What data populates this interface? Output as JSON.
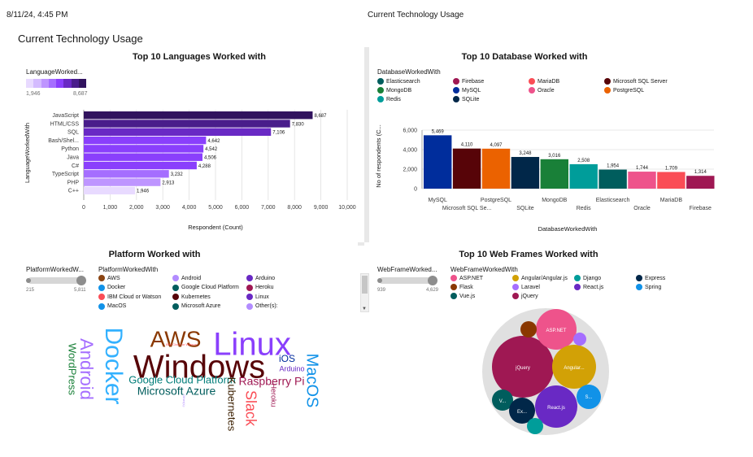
{
  "header": {
    "timestamp": "8/11/24, 4:45 PM",
    "center_title": "Current Technology Usage",
    "dashboard_title": "Current Technology Usage"
  },
  "languages_panel": {
    "title": "Top 10 Languages Worked with",
    "legend_title": "LanguageWorked...",
    "legend_min": "1,946",
    "legend_max": "8,687",
    "y_axis_label": "LanguageWorkedWith",
    "x_axis_label": "Respondent (Count)"
  },
  "database_panel": {
    "title": "Top 10 Database Worked with",
    "legend_title": "DatabaseWorkedWith",
    "y_axis_label": "No of respondents (C...",
    "x_axis_label": "DatabaseWorkedWith"
  },
  "platform_panel": {
    "title": "Platform Worked with",
    "slider_title": "PlatformWorkedW...",
    "slider_min": "215",
    "slider_max": "5,811",
    "legend_title": "PlatformWorkedWith",
    "legend": [
      {
        "label": "AWS",
        "color": "#8b4513"
      },
      {
        "label": "Android",
        "color": "#b28cff"
      },
      {
        "label": "Arduino",
        "color": "#6929c4"
      },
      {
        "label": "Docker",
        "color": "#1192e8"
      },
      {
        "label": "Google Cloud Platform",
        "color": "#005d5d"
      },
      {
        "label": "Heroku",
        "color": "#9f1853"
      },
      {
        "label": "IBM Cloud or Watson",
        "color": "#fa4d56"
      },
      {
        "label": "Kubernetes",
        "color": "#570408"
      },
      {
        "label": "Linux",
        "color": "#6929c4"
      },
      {
        "label": "MacOS",
        "color": "#1192e8"
      },
      {
        "label": "Microsoft Azure",
        "color": "#005d5d"
      },
      {
        "label": "Other(s):",
        "color": "#b28cff"
      }
    ],
    "words": [
      {
        "text": "Windows",
        "color": "#570408"
      },
      {
        "text": "Linux",
        "color": "#8a3ffc"
      },
      {
        "text": "Docker",
        "color": "#33b1ff"
      },
      {
        "text": "AWS",
        "color": "#8a3800"
      },
      {
        "text": "Android",
        "color": "#a56eff"
      },
      {
        "text": "MacOS",
        "color": "#1192e8"
      },
      {
        "text": "Google Cloud Platform",
        "color": "#007d79"
      },
      {
        "text": "Microsoft Azure",
        "color": "#005d5d"
      },
      {
        "text": "Raspberry Pi",
        "color": "#9f1853"
      },
      {
        "text": "Kubernetes",
        "color": "#3b1f00"
      },
      {
        "text": "Slack",
        "color": "#fa4d56"
      },
      {
        "text": "WordPress",
        "color": "#198038"
      },
      {
        "text": "iOS",
        "color": "#002d9c"
      },
      {
        "text": "Arduino",
        "color": "#6929c4"
      },
      {
        "text": "Heroku",
        "color": "#9f1853"
      },
      {
        "text": "IBM Cloud or Watson",
        "color": "#fa4d56"
      },
      {
        "text": "Other(s):",
        "color": "#b28cff"
      }
    ]
  },
  "webframe_panel": {
    "title": "Top 10 Web Frames Worked with",
    "slider_title": "WebFrameWorked...",
    "slider_min": "939",
    "slider_max": "4,629",
    "legend_title": "WebFrameWorkedWith",
    "legend": [
      {
        "label": "ASP.NET",
        "color": "#ee538b"
      },
      {
        "label": "Angular/Angular.js",
        "color": "#d2a106"
      },
      {
        "label": "Django",
        "color": "#009d9a"
      },
      {
        "label": "Express",
        "color": "#012749"
      },
      {
        "label": "Flask",
        "color": "#8a3800"
      },
      {
        "label": "Laravel",
        "color": "#a56eff"
      },
      {
        "label": "React.js",
        "color": "#6929c4"
      },
      {
        "label": "Spring",
        "color": "#1192e8"
      },
      {
        "label": "Vue.js",
        "color": "#005d5d"
      },
      {
        "label": "jQuery",
        "color": "#9f1853"
      }
    ],
    "bubble_labels": {
      "aspnet": "ASP.NET",
      "jquery": "jQuery",
      "angular": "Angular...",
      "react": "React.js",
      "spring": "S...",
      "vue": "V...",
      "express": "Ex..."
    }
  },
  "chart_data": [
    {
      "type": "bar",
      "orientation": "horizontal",
      "title": "Top 10 Languages Worked with",
      "xlabel": "Respondent (Count)",
      "ylabel": "LanguageWorkedWith",
      "categories": [
        "JavaScript",
        "HTML/CSS",
        "SQL",
        "Bash/Shel...",
        "Python",
        "Java",
        "C#",
        "TypeScript",
        "PHP",
        "C++"
      ],
      "values": [
        8687,
        7830,
        7106,
        4642,
        4542,
        4506,
        4288,
        3232,
        2913,
        1946
      ],
      "value_labels": [
        "8,687",
        "7,830",
        "7,106",
        "4,642",
        "4,542",
        "4,506",
        "4,288",
        "3,232",
        "2,913",
        "1,946"
      ],
      "xlim": [
        0,
        10000
      ],
      "xticks": [
        "0",
        "1,000",
        "2,000",
        "3,000",
        "4,000",
        "5,000",
        "6,000",
        "7,000",
        "8,000",
        "9,000",
        "10,000"
      ],
      "colors": [
        "#31135e",
        "#491d8b",
        "#6929c4",
        "#8a3ffc",
        "#8a3ffc",
        "#8a3ffc",
        "#8a3ffc",
        "#a56eff",
        "#be95ff",
        "#e8daff"
      ],
      "grid": true
    },
    {
      "type": "bar",
      "title": "Top 10 Database Worked with",
      "xlabel": "DatabaseWorkedWith",
      "ylabel": "No of respondents (C...",
      "categories": [
        "MySQL",
        "Microsoft SQL Se...",
        "PostgreSQL",
        "SQLite",
        "MongoDB",
        "Redis",
        "Elasticsearch",
        "Oracle",
        "MariaDB",
        "Firebase"
      ],
      "values": [
        5469,
        4110,
        4097,
        3248,
        3016,
        2508,
        1954,
        1744,
        1709,
        1314
      ],
      "value_labels": [
        "5,469",
        "4,110",
        "4,097",
        "3,248",
        "3,016",
        "2,508",
        "1,954",
        "1,744",
        "1,709",
        "1,314"
      ],
      "colors": [
        "#002d9c",
        "#570408",
        "#eb6200",
        "#012749",
        "#198038",
        "#009d9a",
        "#005d5d",
        "#ee538b",
        "#fa4d56",
        "#9f1853"
      ],
      "ylim": [
        0,
        6000
      ],
      "yticks": [
        "0",
        "2,000",
        "4,000",
        "6,000"
      ],
      "legend": [
        "Elasticsearch",
        "Firebase",
        "MariaDB",
        "Microsoft SQL Server",
        "MongoDB",
        "MySQL",
        "Oracle",
        "PostgreSQL",
        "Redis",
        "SQLite"
      ],
      "legend_colors": [
        "#005d5d",
        "#9f1853",
        "#fa4d56",
        "#570408",
        "#198038",
        "#002d9c",
        "#ee538b",
        "#eb6200",
        "#009d9a",
        "#012749"
      ],
      "grid": true
    }
  ]
}
